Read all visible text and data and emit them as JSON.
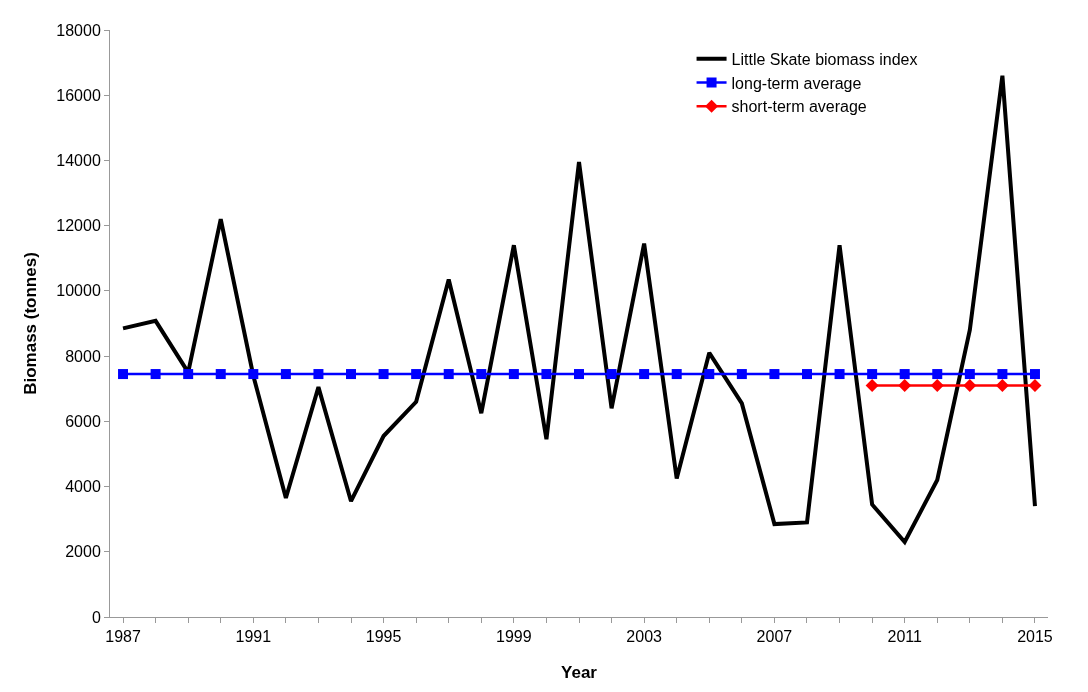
{
  "chart_data": {
    "type": "line",
    "xlabel": "Year",
    "ylabel": "Biomass (tonnes)",
    "categories": [
      "1987",
      null,
      null,
      null,
      "1991",
      null,
      null,
      null,
      "1995",
      null,
      null,
      null,
      "1999",
      null,
      null,
      null,
      "2003",
      null,
      null,
      null,
      "2007",
      null,
      null,
      null,
      "2011",
      null,
      null,
      null,
      "2015"
    ],
    "series": [
      {
        "name": "Little Skate biomass index",
        "color": "#000000",
        "marker": "none",
        "values": [
          8850,
          9080,
          7500,
          12200,
          7400,
          3650,
          7050,
          3550,
          5550,
          6600,
          10350,
          6250,
          11400,
          5450,
          13950,
          6400,
          11450,
          4250,
          8100,
          6550,
          2850,
          2900,
          11400,
          3450,
          2300,
          4200,
          8800,
          16600,
          3400
        ]
      },
      {
        "name": "long-term average",
        "color": "#0000ff",
        "marker": "square",
        "values": [
          7450,
          7450,
          7450,
          7450,
          7450,
          7450,
          7450,
          7450,
          7450,
          7450,
          7450,
          7450,
          7450,
          7450,
          7450,
          7450,
          7450,
          7450,
          7450,
          7450,
          7450,
          7450,
          7450,
          7450,
          7450,
          7450,
          7450,
          7450,
          7450
        ]
      },
      {
        "name": "short-term average",
        "color": "#ff0000",
        "marker": "diamond",
        "values": [
          null,
          null,
          null,
          null,
          null,
          null,
          null,
          null,
          null,
          null,
          null,
          null,
          null,
          null,
          null,
          null,
          null,
          null,
          null,
          null,
          null,
          null,
          null,
          7100,
          7100,
          7100,
          7100,
          7100,
          7100
        ]
      }
    ],
    "ylim": [
      0,
      18000
    ],
    "yticks": [
      0,
      2000,
      4000,
      6000,
      8000,
      10000,
      12000,
      14000,
      16000,
      18000
    ],
    "grid": false,
    "legend": "top right"
  }
}
